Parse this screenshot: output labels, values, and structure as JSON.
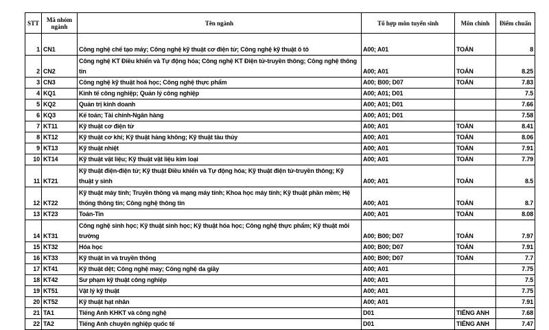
{
  "headers": {
    "stt": "STT",
    "code": "Mã nhóm ngành",
    "name": "Tên ngành",
    "combo": "Tổ hợp môn tuyển sinh",
    "main": "Môn chính",
    "score": "Điểm chuẩn"
  },
  "rows": [
    {
      "stt": "1",
      "code": "CN1",
      "name": "Công nghệ chế tạo máy; Công nghệ kỹ thuật cơ điện tử; Công nghệ kỹ thuật ô tô",
      "combo": "A00; A01",
      "main": "TOÁN",
      "score": "8",
      "tall": true
    },
    {
      "stt": "2",
      "code": "CN2",
      "name": "Công nghệ KT Điều khiển và Tự động hóa; Công nghệ KT Điện tử-truyền thông; Công nghệ thông tin",
      "combo": "A00; A01",
      "main": "TOÁN",
      "score": "8.25",
      "tall": true
    },
    {
      "stt": "3",
      "code": "CN3",
      "name": "Công nghệ kỹ thuật hoá học; Công nghệ thực phẩm",
      "combo": "A00; B00; D07",
      "main": "TOÁN",
      "score": "7.83"
    },
    {
      "stt": "4",
      "code": "KQ1",
      "name": "Kinh tế công nghiệp; Quản lý công nghiệp",
      "combo": "A00; A01; D01",
      "main": "",
      "score": "7.5"
    },
    {
      "stt": "5",
      "code": "KQ2",
      "name": "Quản trị kinh doanh",
      "combo": "A00; A01; D01",
      "main": "",
      "score": "7.66"
    },
    {
      "stt": "6",
      "code": "KQ3",
      "name": "Kế toán; Tài chính-Ngân hàng",
      "combo": "A00; A01; D01",
      "main": "",
      "score": "7.58"
    },
    {
      "stt": "7",
      "code": "KT11",
      "name": "Kỹ thuật cơ điện tử",
      "combo": "A00; A01",
      "main": "TOÁN",
      "score": "8.41"
    },
    {
      "stt": "8",
      "code": "KT12",
      "name": "Kỹ thuật cơ khí; Kỹ thuật hàng không; Kỹ thuật tàu thủy",
      "combo": "A00; A01",
      "main": "TOÁN",
      "score": "8.06"
    },
    {
      "stt": "9",
      "code": "KT13",
      "name": "Kỹ thuật nhiệt",
      "combo": "A00; A01",
      "main": "TOÁN",
      "score": "7.91"
    },
    {
      "stt": "10",
      "code": "KT14",
      "name": "Kỹ thuật vật liệu; Kỹ thuật vật liệu kim loại",
      "combo": "A00; A01",
      "main": "TOÁN",
      "score": "7.79"
    },
    {
      "stt": "11",
      "code": "KT21",
      "name": "Kỹ thuật điện-điện tử; Kỹ thuật Điều khiển và Tự động hóa; Kỹ thuật điện tử-truyền thông; Kỹ thuật y sinh",
      "combo": "A00; A01",
      "main": "TOÁN",
      "score": "8.5",
      "tall": true
    },
    {
      "stt": "12",
      "code": "KT22",
      "name": "Kỹ thuật máy tính; Truyền thông và mạng máy tính; Khoa học máy tính; Kỹ thuật phần mềm; Hệ thống thông tin; Công nghệ thông tin",
      "combo": "A00; A01",
      "main": "TOÁN",
      "score": "8.7",
      "tall": true
    },
    {
      "stt": "13",
      "code": "KT23",
      "name": "Toán-Tin",
      "combo": "A00; A01",
      "main": "TOÁN",
      "score": "8.08"
    },
    {
      "stt": "14",
      "code": "KT31",
      "name": "Công nghệ sinh học; Kỹ thuật sinh học; Kỹ thuật hóa học; Công nghệ thực phẩm; Kỹ thuật môi trường",
      "combo": "A00; B00; D07",
      "main": "TOÁN",
      "score": "7.97",
      "tall": true
    },
    {
      "stt": "15",
      "code": "KT32",
      "name": "Hóa học",
      "combo": "A00; B00; D07",
      "main": "TOÁN",
      "score": "7.91"
    },
    {
      "stt": "16",
      "code": "KT33",
      "name": "Kỹ thuật in và truyền thông",
      "combo": "A00; B00; D07",
      "main": "TOÁN",
      "score": "7.7"
    },
    {
      "stt": "17",
      "code": "KT41",
      "name": "Kỹ thuật dệt; Công nghệ may; Công nghệ da giầy",
      "combo": "A00; A01",
      "main": "",
      "score": "7.75"
    },
    {
      "stt": "18",
      "code": "KT42",
      "name": "Sư phạm kỹ thuật công nghiệp",
      "combo": "A00; A01",
      "main": "",
      "score": "7.5"
    },
    {
      "stt": "19",
      "code": "KT51",
      "name": "Vật lý kỹ thuật",
      "combo": "A00; A01",
      "main": "",
      "score": "7.75"
    },
    {
      "stt": "20",
      "code": "KT52",
      "name": "Kỹ thuật hạt nhân",
      "combo": "A00; A01",
      "main": "",
      "score": "7.91"
    },
    {
      "stt": "21",
      "code": "TA1",
      "name": "Tiếng Anh KHKT và công nghệ",
      "combo": "D01",
      "main": "TIẾNG ANH",
      "score": "7.68"
    },
    {
      "stt": "22",
      "code": "TA2",
      "name": "Tiếng Anh chuyên nghiệp quốc tế",
      "combo": "D01",
      "main": "TIẾNG ANH",
      "score": "7.47"
    }
  ]
}
